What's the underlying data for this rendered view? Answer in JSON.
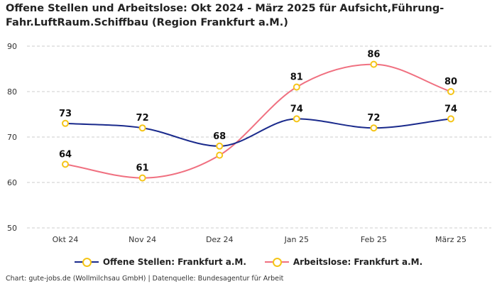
{
  "chart_data": {
    "type": "line",
    "title": "Offene Stellen und Arbeitslose: Okt 2024 - März 2025 für Aufsicht,Führung-Fahr.LuftRaum.Schiffbau (Region Frankfurt a.M.)",
    "categories": [
      "Okt 24",
      "Nov 24",
      "Dez 24",
      "Jan 25",
      "Feb 25",
      "März 25"
    ],
    "ylim": [
      50,
      90
    ],
    "yticks": [
      50,
      60,
      70,
      80,
      90
    ],
    "grid": true,
    "legend_position": "bottom",
    "series": [
      {
        "name": "Offene Stellen: Frankfurt a.M.",
        "color": "#1a2a8c",
        "values": [
          73,
          72,
          68,
          74,
          72,
          74
        ],
        "label_position": "above"
      },
      {
        "name": "Arbeitslose: Frankfurt a.M.",
        "color": "#f07080",
        "values": [
          64,
          61,
          66,
          81,
          86,
          80
        ],
        "label_position": "none"
      }
    ],
    "marker_color": "#f5c518",
    "annotations": [
      {
        "category": "Okt 24",
        "text": "64"
      },
      {
        "category": "Nov 24",
        "text": "61"
      },
      {
        "category": "Jan 25",
        "text": "81"
      },
      {
        "category": "Feb 25",
        "text": "86"
      },
      {
        "category": "März 25",
        "text": "80"
      }
    ]
  },
  "footer": "Chart: gute-jobs.de (Wollmilchsau GmbH) | Datenquelle: Bundesagentur für Arbeit"
}
